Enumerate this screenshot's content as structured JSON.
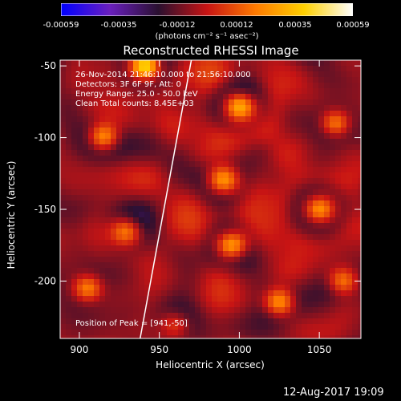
{
  "colorbar": {
    "ticks": [
      "-0.00059",
      "-0.00035",
      "-0.00012",
      "0.00012",
      "0.00035",
      "0.00059"
    ],
    "units_label": "(photons cm⁻² s⁻¹ asec⁻²)",
    "stops": [
      "#0000ff",
      "#6a1fbf",
      "#2a1030",
      "#c81414",
      "#ff7a00",
      "#ffd000",
      "#ffffff"
    ]
  },
  "chart_data": {
    "type": "heatmap",
    "title": "Reconstructed RHESSI Image",
    "xlabel": "Heliocentric X (arcsec)",
    "ylabel": "Heliocentric Y (arcsec)",
    "xlim": [
      888,
      1076
    ],
    "ylim": [
      -240,
      -46
    ],
    "x_ticks": [
      900,
      950,
      1000,
      1050
    ],
    "y_ticks": [
      -50,
      -100,
      -150,
      -200
    ],
    "value_range": [
      -0.00059,
      0.00059
    ],
    "peak": {
      "x": 941,
      "y": -50
    },
    "limb_line": [
      [
        938,
        -240
      ],
      [
        970,
        -46
      ]
    ],
    "annotations": [
      "26-Nov-2014 21:46:10.000 to 21:56:10.000",
      "Detectors: 3F 6F 9F, Att: 0",
      "Energy Range: 25.0 - 50.0 keV",
      "Clean     Total counts: 8.45E+03"
    ],
    "peak_label": "Position of Peak = [941,-50]"
  },
  "footer": {
    "timestamp": "12-Aug-2017 19:09"
  }
}
